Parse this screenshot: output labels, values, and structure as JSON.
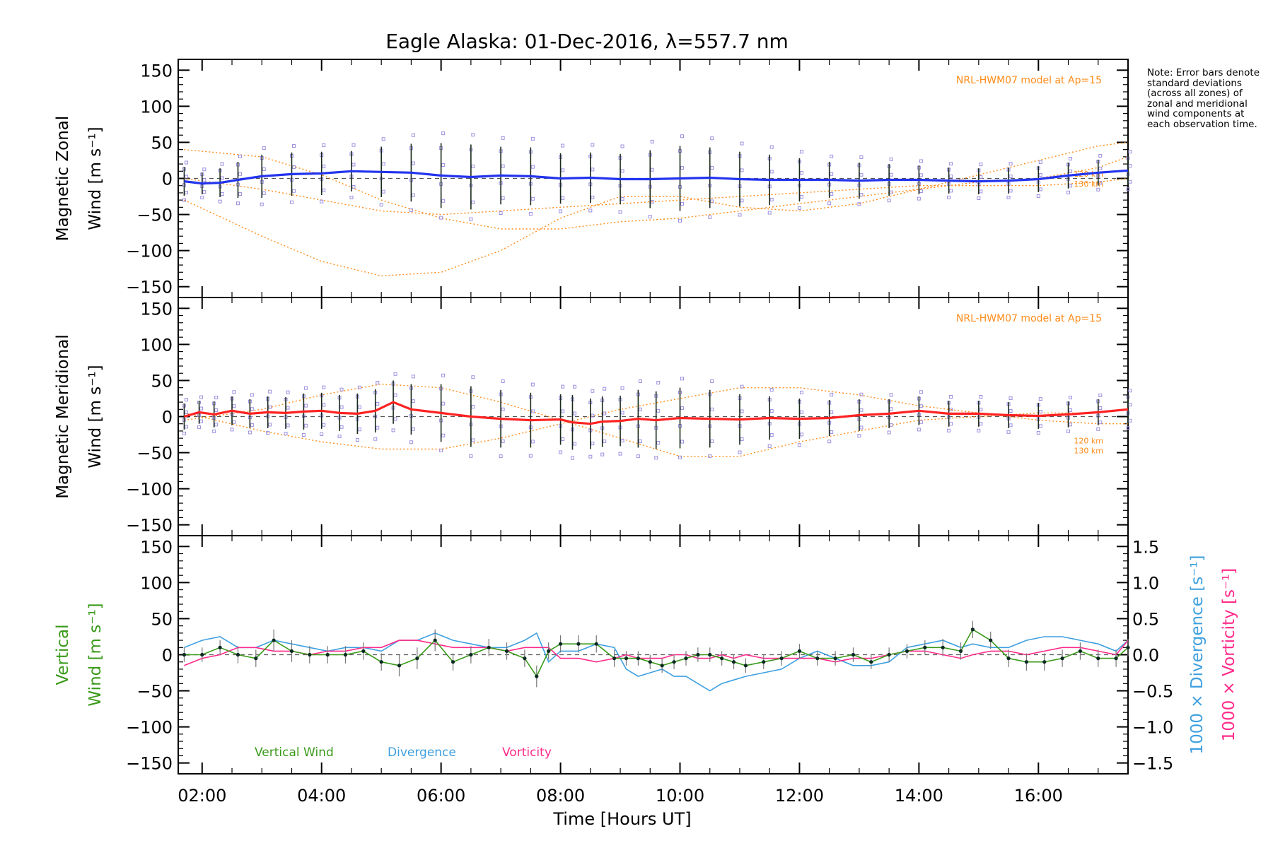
{
  "title": "Eagle Alaska: 01-Dec-2016, λ=557.7 nm",
  "note": "Note: Error bars denote standard deviations (across all zones) of zonal and meridional wind components at each observation time.",
  "xaxis": {
    "label": "Time [Hours UT]",
    "range_hours": [
      1.6,
      17.5
    ],
    "ticks": [
      2,
      4,
      6,
      8,
      10,
      12,
      14,
      16
    ],
    "tick_labels": [
      "02:00",
      "04:00",
      "06:00",
      "08:00",
      "10:00",
      "12:00",
      "14:00",
      "16:00"
    ]
  },
  "colors": {
    "zonal": "#2233ee",
    "meridional": "#ff2222",
    "model": "#ff8c1a",
    "scatter": "#9b8fe0",
    "vertical": "#3a9a1a",
    "divergence": "#3ea0e0",
    "vorticity": "#ff2a8a"
  },
  "chart_data": [
    {
      "type": "line",
      "panel": "zonal",
      "ylabel": "Magnetic Zonal",
      "ylabel2": "Wind [m s⁻¹]",
      "ylim": [
        -165,
        165
      ],
      "yticks": [
        -150,
        -100,
        -50,
        0,
        50,
        100,
        150
      ],
      "model_label": "NRL-HWM07 model at Ap=15",
      "model_alt_labels": [
        "120 km",
        "130 km"
      ],
      "x": [
        1.7,
        2.0,
        2.3,
        2.6,
        3.0,
        3.5,
        4.0,
        4.5,
        5.0,
        5.5,
        6.0,
        6.5,
        7.0,
        7.5,
        8.0,
        8.5,
        9.0,
        9.5,
        10.0,
        10.5,
        11.0,
        11.5,
        12.0,
        12.5,
        13.0,
        13.5,
        14.0,
        14.5,
        15.0,
        15.5,
        16.0,
        16.5,
        17.0,
        17.5
      ],
      "series": [
        {
          "values": [
            -4,
            -7,
            -6,
            -2,
            3,
            6,
            7,
            10,
            9,
            8,
            4,
            2,
            4,
            3,
            0,
            1,
            -1,
            -1,
            0,
            1,
            -1,
            -2,
            -2,
            -2,
            -3,
            -2,
            -2,
            -3,
            -4,
            -3,
            -1,
            4,
            8,
            11
          ]
        }
      ],
      "error": [
        20,
        15,
        20,
        25,
        30,
        30,
        30,
        28,
        35,
        40,
        45,
        45,
        40,
        40,
        35,
        35,
        35,
        40,
        45,
        42,
        38,
        35,
        30,
        25,
        25,
        22,
        20,
        18,
        18,
        18,
        18,
        18,
        18,
        20
      ],
      "model": [
        {
          "x": [
            1.7,
            3.0,
            4.0,
            5.0,
            6.0,
            7.0,
            8.0,
            9.0,
            10.0,
            11.0,
            12.0,
            13.0,
            14.0,
            15.0,
            16.0,
            17.0,
            17.5
          ],
          "values": [
            -30,
            -80,
            -115,
            -135,
            -130,
            -100,
            -55,
            -25,
            -25,
            -40,
            -45,
            -35,
            -15,
            5,
            25,
            45,
            50
          ]
        },
        {
          "x": [
            1.7,
            3.0,
            4.0,
            5.0,
            6.0,
            7.0,
            8.0,
            9.0,
            10.0,
            11.0,
            12.0,
            13.0,
            14.0,
            15.0,
            16.0,
            17.0,
            17.5
          ],
          "values": [
            40,
            30,
            5,
            -30,
            -55,
            -70,
            -70,
            -60,
            -55,
            -45,
            -35,
            -25,
            -15,
            -5,
            0,
            15,
            30
          ]
        },
        {
          "x": [
            1.7,
            3.0,
            4.0,
            5.0,
            6.0,
            7.0,
            8.0,
            9.0,
            10.0,
            11.0,
            12.0,
            13.0,
            14.0,
            15.0,
            16.0,
            17.0,
            17.5
          ],
          "values": [
            0,
            -15,
            -30,
            -45,
            -50,
            -45,
            -40,
            -35,
            -30,
            -25,
            -20,
            -15,
            -10,
            -10,
            -10,
            -5,
            0
          ]
        }
      ]
    },
    {
      "type": "line",
      "panel": "meridional",
      "ylabel": "Magnetic Meridional",
      "ylabel2": "Wind [m s⁻¹]",
      "ylim": [
        -165,
        165
      ],
      "yticks": [
        -150,
        -100,
        -50,
        0,
        50,
        100,
        150
      ],
      "model_label": "NRL-HWM07 model at Ap=15",
      "model_alt_labels": [
        "120 km",
        "130 km"
      ],
      "x": [
        1.7,
        1.95,
        2.2,
        2.5,
        2.8,
        3.1,
        3.4,
        3.7,
        4.0,
        4.3,
        4.6,
        4.9,
        5.2,
        5.5,
        6.0,
        6.5,
        7.0,
        7.5,
        8.0,
        8.2,
        8.5,
        8.7,
        9.0,
        9.3,
        9.6,
        10.0,
        10.5,
        11.0,
        11.5,
        12.0,
        12.5,
        13.0,
        13.5,
        14.0,
        14.5,
        15.0,
        15.5,
        16.0,
        16.5,
        17.0,
        17.5
      ],
      "series": [
        {
          "values": [
            0,
            6,
            3,
            8,
            4,
            6,
            5,
            7,
            8,
            5,
            4,
            8,
            20,
            10,
            5,
            0,
            -3,
            -5,
            -4,
            -8,
            -10,
            -7,
            -6,
            -3,
            -5,
            -2,
            -3,
            -4,
            -2,
            -3,
            -2,
            2,
            4,
            8,
            4,
            4,
            2,
            1,
            3,
            6,
            10
          ]
        }
      ],
      "error": [
        18,
        16,
        18,
        20,
        20,
        22,
        22,
        25,
        25,
        25,
        28,
        30,
        30,
        35,
        40,
        42,
        40,
        38,
        35,
        38,
        35,
        35,
        35,
        40,
        40,
        42,
        40,
        35,
        30,
        28,
        25,
        22,
        20,
        20,
        18,
        18,
        18,
        18,
        18,
        18,
        20
      ],
      "model": [
        {
          "x": [
            1.7,
            3.0,
            4.0,
            5.0,
            6.0,
            7.0,
            8.0,
            9.0,
            10.0,
            11.0,
            12.0,
            13.0,
            14.0,
            15.0,
            16.0,
            17.0,
            17.5
          ],
          "values": [
            -5,
            10,
            30,
            45,
            40,
            20,
            -5,
            -30,
            -55,
            -55,
            -35,
            -20,
            -5,
            0,
            5,
            5,
            10
          ]
        },
        {
          "x": [
            1.7,
            3.0,
            4.0,
            5.0,
            6.0,
            7.0,
            8.0,
            9.0,
            10.0,
            11.0,
            12.0,
            13.0,
            14.0,
            15.0,
            16.0,
            17.0,
            17.5
          ],
          "values": [
            5,
            -20,
            -35,
            -45,
            -45,
            -30,
            -10,
            10,
            25,
            40,
            40,
            30,
            15,
            5,
            -5,
            -10,
            -10
          ]
        }
      ]
    },
    {
      "type": "line",
      "panel": "vertical",
      "ylabel": "Vertical",
      "ylabel2": "Wind [m s⁻¹]",
      "ylim": [
        -165,
        165
      ],
      "yticks": [
        -150,
        -100,
        -50,
        0,
        50,
        100,
        150
      ],
      "y2label_div": "1000 × Divergence [s⁻¹]",
      "y2label_vor": "1000 × Vorticity [s⁻¹]",
      "y2lim": [
        -1.65,
        1.65
      ],
      "y2ticks": [
        -1.5,
        -1.0,
        -0.5,
        0.0,
        0.5,
        1.0,
        1.5
      ],
      "y2tick_labels": [
        "−1.5",
        "−1.0",
        "−0.5",
        "0.0",
        "0.5",
        "1.0",
        "1.5"
      ],
      "legend": [
        "Vertical Wind",
        "Divergence",
        "Vorticity"
      ],
      "x": [
        1.7,
        2.0,
        2.3,
        2.6,
        2.9,
        3.2,
        3.5,
        3.8,
        4.1,
        4.4,
        4.7,
        5.0,
        5.3,
        5.6,
        5.9,
        6.2,
        6.5,
        6.8,
        7.1,
        7.4,
        7.6,
        7.8,
        8.0,
        8.3,
        8.6,
        8.9,
        9.1,
        9.3,
        9.5,
        9.7,
        9.9,
        10.1,
        10.3,
        10.5,
        10.7,
        10.9,
        11.1,
        11.4,
        11.7,
        12.0,
        12.3,
        12.6,
        12.9,
        13.2,
        13.5,
        13.8,
        14.1,
        14.4,
        14.7,
        14.9,
        15.2,
        15.5,
        15.8,
        16.1,
        16.4,
        16.7,
        17.0,
        17.3,
        17.5
      ],
      "series": [
        {
          "name": "Vertical Wind",
          "values": [
            0,
            0,
            10,
            0,
            -5,
            20,
            5,
            0,
            0,
            0,
            5,
            -10,
            -15,
            -5,
            20,
            -10,
            0,
            10,
            5,
            -5,
            -30,
            5,
            15,
            15,
            15,
            -5,
            -5,
            -5,
            -10,
            -15,
            -10,
            -5,
            0,
            0,
            -5,
            -10,
            -15,
            -10,
            -5,
            5,
            -5,
            -5,
            0,
            -10,
            0,
            5,
            10,
            10,
            5,
            35,
            20,
            -5,
            -10,
            -10,
            -5,
            5,
            -5,
            -5,
            10
          ]
        },
        {
          "name": "Divergence",
          "values": [
            0.1,
            0.2,
            0.25,
            0.1,
            0.1,
            0.2,
            0.15,
            0.1,
            0.05,
            0.1,
            0.1,
            0.05,
            0.2,
            0.2,
            0.3,
            0.2,
            0.15,
            0.1,
            0.1,
            0.2,
            0.3,
            -0.1,
            0.05,
            0.05,
            0.15,
            0.1,
            -0.2,
            -0.3,
            -0.25,
            -0.2,
            -0.3,
            -0.3,
            -0.4,
            -0.5,
            -0.4,
            -0.35,
            -0.3,
            -0.25,
            -0.2,
            -0.05,
            0.05,
            -0.05,
            -0.15,
            -0.15,
            -0.1,
            0.1,
            0.15,
            0.2,
            0.1,
            0.15,
            0.1,
            0.1,
            0.2,
            0.25,
            0.25,
            0.2,
            0.15,
            0.05,
            0.2
          ]
        },
        {
          "name": "Vorticity",
          "values": [
            -0.15,
            -0.05,
            0.0,
            0.1,
            0.1,
            0.05,
            0.05,
            0.0,
            0.05,
            0.05,
            0.1,
            0.1,
            0.2,
            0.2,
            0.15,
            0.1,
            0.1,
            0.1,
            0.05,
            0.1,
            0.1,
            0.1,
            -0.05,
            -0.05,
            -0.1,
            -0.05,
            0.0,
            -0.05,
            -0.05,
            -0.05,
            0.0,
            0.0,
            -0.05,
            -0.05,
            0.0,
            -0.05,
            0.0,
            -0.05,
            -0.05,
            -0.05,
            -0.05,
            -0.1,
            -0.05,
            -0.05,
            0.0,
            0.05,
            0.05,
            0.0,
            -0.05,
            0.0,
            0.05,
            0.05,
            0.0,
            0.05,
            0.1,
            0.1,
            0.05,
            0.0,
            0.2
          ]
        }
      ],
      "error": [
        10,
        10,
        10,
        12,
        12,
        15,
        15,
        12,
        12,
        12,
        12,
        12,
        15,
        15,
        15,
        12,
        12,
        12,
        12,
        12,
        15,
        12,
        12,
        12,
        12,
        12,
        10,
        10,
        10,
        10,
        10,
        10,
        10,
        10,
        10,
        10,
        10,
        10,
        10,
        10,
        10,
        10,
        10,
        10,
        10,
        10,
        10,
        12,
        12,
        12,
        12,
        12,
        12,
        12,
        12,
        12,
        12,
        12,
        12
      ]
    }
  ]
}
